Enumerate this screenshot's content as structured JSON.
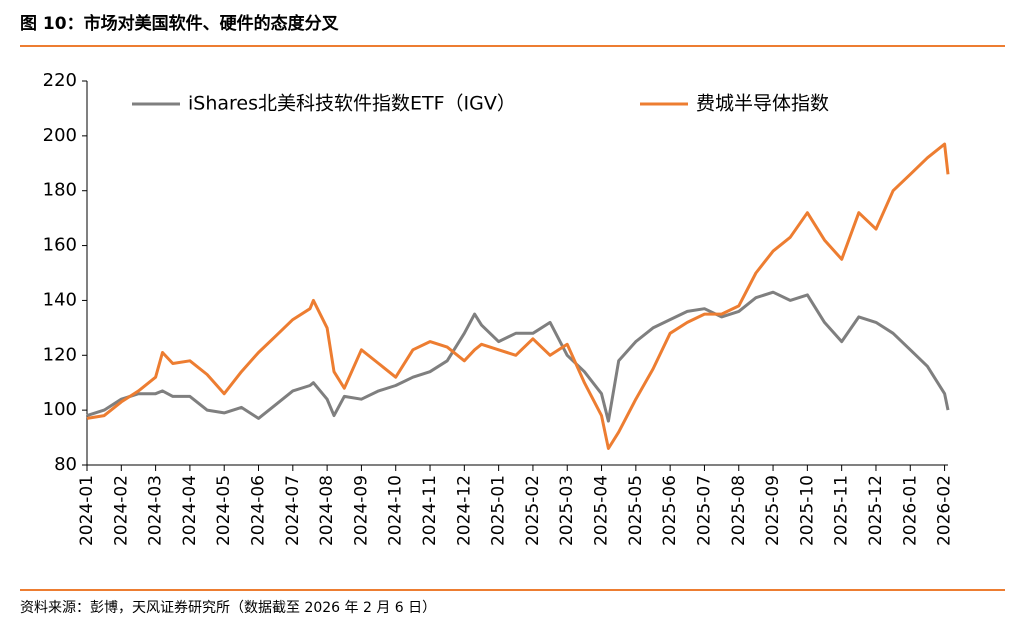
{
  "chart_data": {
    "type": "line",
    "title": "图 10：市场对美国软件、硬件的态度分叉",
    "source": "资料来源：彭博，天风证券研究所（数据截至 2026 年 2 月 6 日）",
    "x": [
      0,
      0.5,
      1,
      1.5,
      2,
      2.2,
      2.5,
      3,
      3.5,
      4,
      4.5,
      5,
      5.5,
      6,
      6.5,
      6.6,
      7,
      7.2,
      7.5,
      8,
      8.5,
      9,
      9.5,
      10,
      10.5,
      11,
      11.3,
      11.5,
      12,
      12.5,
      13,
      13.5,
      14,
      14.5,
      15,
      15.2,
      15.5,
      16,
      16.5,
      17,
      17.5,
      18,
      18.5,
      19,
      19.5,
      20,
      20.5,
      21,
      21.5,
      22,
      22.5,
      23,
      23.5,
      24,
      24.5,
      25,
      25.1
    ],
    "series": [
      {
        "name": "iShares北美科技软件指数ETF（IGV）",
        "color": "#7f7f7f",
        "values": [
          98,
          100,
          104,
          106,
          106,
          107,
          105,
          105,
          100,
          99,
          101,
          97,
          102,
          107,
          109,
          110,
          104,
          98,
          105,
          104,
          107,
          109,
          112,
          114,
          118,
          128,
          135,
          131,
          125,
          128,
          128,
          132,
          120,
          114,
          106,
          96,
          118,
          125,
          130,
          133,
          136,
          137,
          134,
          136,
          141,
          143,
          140,
          142,
          132,
          125,
          134,
          132,
          128,
          122,
          116,
          106,
          100
        ]
      },
      {
        "name": "费城半导体指数",
        "color": "#ed7d31",
        "values": [
          97,
          98,
          103,
          107,
          112,
          121,
          117,
          118,
          113,
          106,
          114,
          121,
          127,
          133,
          137,
          140,
          130,
          114,
          108,
          122,
          117,
          112,
          122,
          125,
          123,
          118,
          122,
          124,
          122,
          120,
          126,
          120,
          124,
          110,
          98,
          86,
          92,
          104,
          115,
          128,
          132,
          135,
          135,
          138,
          150,
          158,
          163,
          172,
          162,
          155,
          172,
          166,
          180,
          186,
          192,
          197,
          186
        ]
      }
    ],
    "xlim": [
      0,
      25.1
    ],
    "xticks": [
      {
        "value": 0,
        "label": "2024-01"
      },
      {
        "value": 1,
        "label": "2024-02"
      },
      {
        "value": 2,
        "label": "2024-03"
      },
      {
        "value": 3,
        "label": "2024-04"
      },
      {
        "value": 4,
        "label": "2024-05"
      },
      {
        "value": 5,
        "label": "2024-06"
      },
      {
        "value": 6,
        "label": "2024-07"
      },
      {
        "value": 7,
        "label": "2024-08"
      },
      {
        "value": 8,
        "label": "2024-09"
      },
      {
        "value": 9,
        "label": "2024-10"
      },
      {
        "value": 10,
        "label": "2024-11"
      },
      {
        "value": 11,
        "label": "2024-12"
      },
      {
        "value": 12,
        "label": "2025-01"
      },
      {
        "value": 13,
        "label": "2025-02"
      },
      {
        "value": 14,
        "label": "2025-03"
      },
      {
        "value": 15,
        "label": "2025-04"
      },
      {
        "value": 16,
        "label": "2025-05"
      },
      {
        "value": 17,
        "label": "2025-06"
      },
      {
        "value": 18,
        "label": "2025-07"
      },
      {
        "value": 19,
        "label": "2025-08"
      },
      {
        "value": 20,
        "label": "2025-09"
      },
      {
        "value": 21,
        "label": "2025-10"
      },
      {
        "value": 22,
        "label": "2025-11"
      },
      {
        "value": 23,
        "label": "2025-12"
      },
      {
        "value": 24,
        "label": "2026-01"
      },
      {
        "value": 25,
        "label": "2026-02"
      }
    ],
    "ylim": [
      80,
      220
    ],
    "yticks": [
      80,
      100,
      120,
      140,
      160,
      180,
      200,
      220
    ]
  }
}
